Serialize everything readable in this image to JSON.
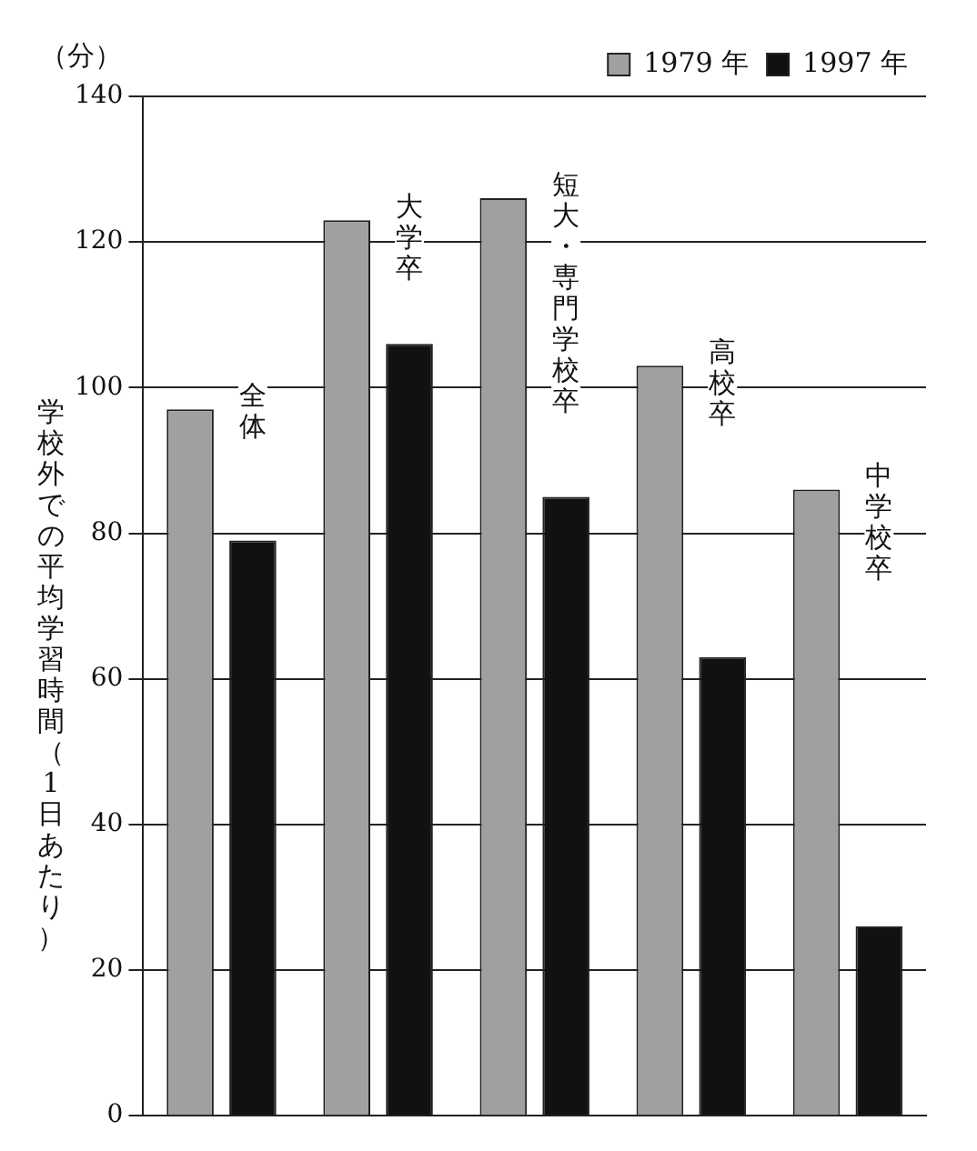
{
  "chart_data": {
    "type": "bar",
    "ylabel": "学校外での平均学習時間（1日あたり）",
    "annotations": [
      "（分）"
    ],
    "categories": [
      "全体",
      "大学卒",
      "短大・専門学校卒",
      "高校卒",
      "中学校卒"
    ],
    "series": [
      {
        "name": "1979 年",
        "color": "#a0a0a0",
        "values": [
          97,
          123,
          126,
          103,
          86
        ]
      },
      {
        "name": "1997 年",
        "color": "#111111",
        "values": [
          79,
          106,
          85,
          63,
          26
        ]
      }
    ],
    "ylim": [
      0,
      140
    ],
    "yticks": [
      0,
      20,
      40,
      60,
      80,
      100,
      120,
      140
    ],
    "grid": "y",
    "legend": "top right"
  }
}
